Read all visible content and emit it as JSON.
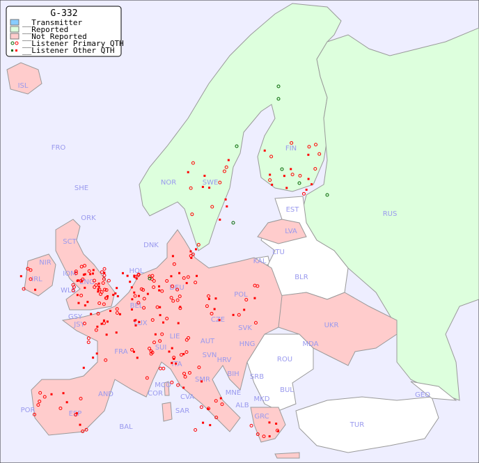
{
  "legend": {
    "title": "G-332",
    "items": [
      {
        "label": "__Transmitter",
        "color": "#88ccff"
      },
      {
        "label": "__Reported",
        "color": "#ddffdd"
      },
      {
        "label": "__Not Reported",
        "color": "#ffcccc"
      },
      {
        "label": "__Listener Primary QTH",
        "colors": [
          "#006600",
          "#ff0000"
        ]
      },
      {
        "label": "__Listener Other QTH",
        "colors": [
          "#006600",
          "#ff0000"
        ]
      }
    ]
  },
  "colors": {
    "sea": "#eeeeff",
    "reported": "#ddffdd",
    "not_reported": "#ffcccc",
    "other": "#ffffff",
    "border": "#999999",
    "marker": "#ff0000",
    "marker_green": "#006600"
  },
  "labels": [
    "ISL",
    "FRO",
    "SHE",
    "ORK",
    "NOR",
    "SWE",
    "FIN",
    "EST",
    "RUS",
    "LVA",
    "LTU",
    "DNK",
    "KAL",
    "BLR",
    "HOL",
    "DEU",
    "POL",
    "IRL",
    "NIR",
    "SCT",
    "IOM",
    "WLS",
    "ENG",
    "GSY",
    "JSY",
    "BEL",
    "LUX",
    "CZE",
    "SVK",
    "UKR",
    "MDA",
    "FRA",
    "SUI",
    "LIE",
    "AUT",
    "HNG",
    "SVN",
    "HRV",
    "ROU",
    "ITA",
    "BIH",
    "SRB",
    "MCO",
    "COR",
    "SMR",
    "CVA",
    "MNE",
    "BUL",
    "GEO",
    "AND",
    "POR",
    "ESP",
    "BAL",
    "SAR",
    "ALB",
    "MKD",
    "GRC",
    "TUR"
  ]
}
